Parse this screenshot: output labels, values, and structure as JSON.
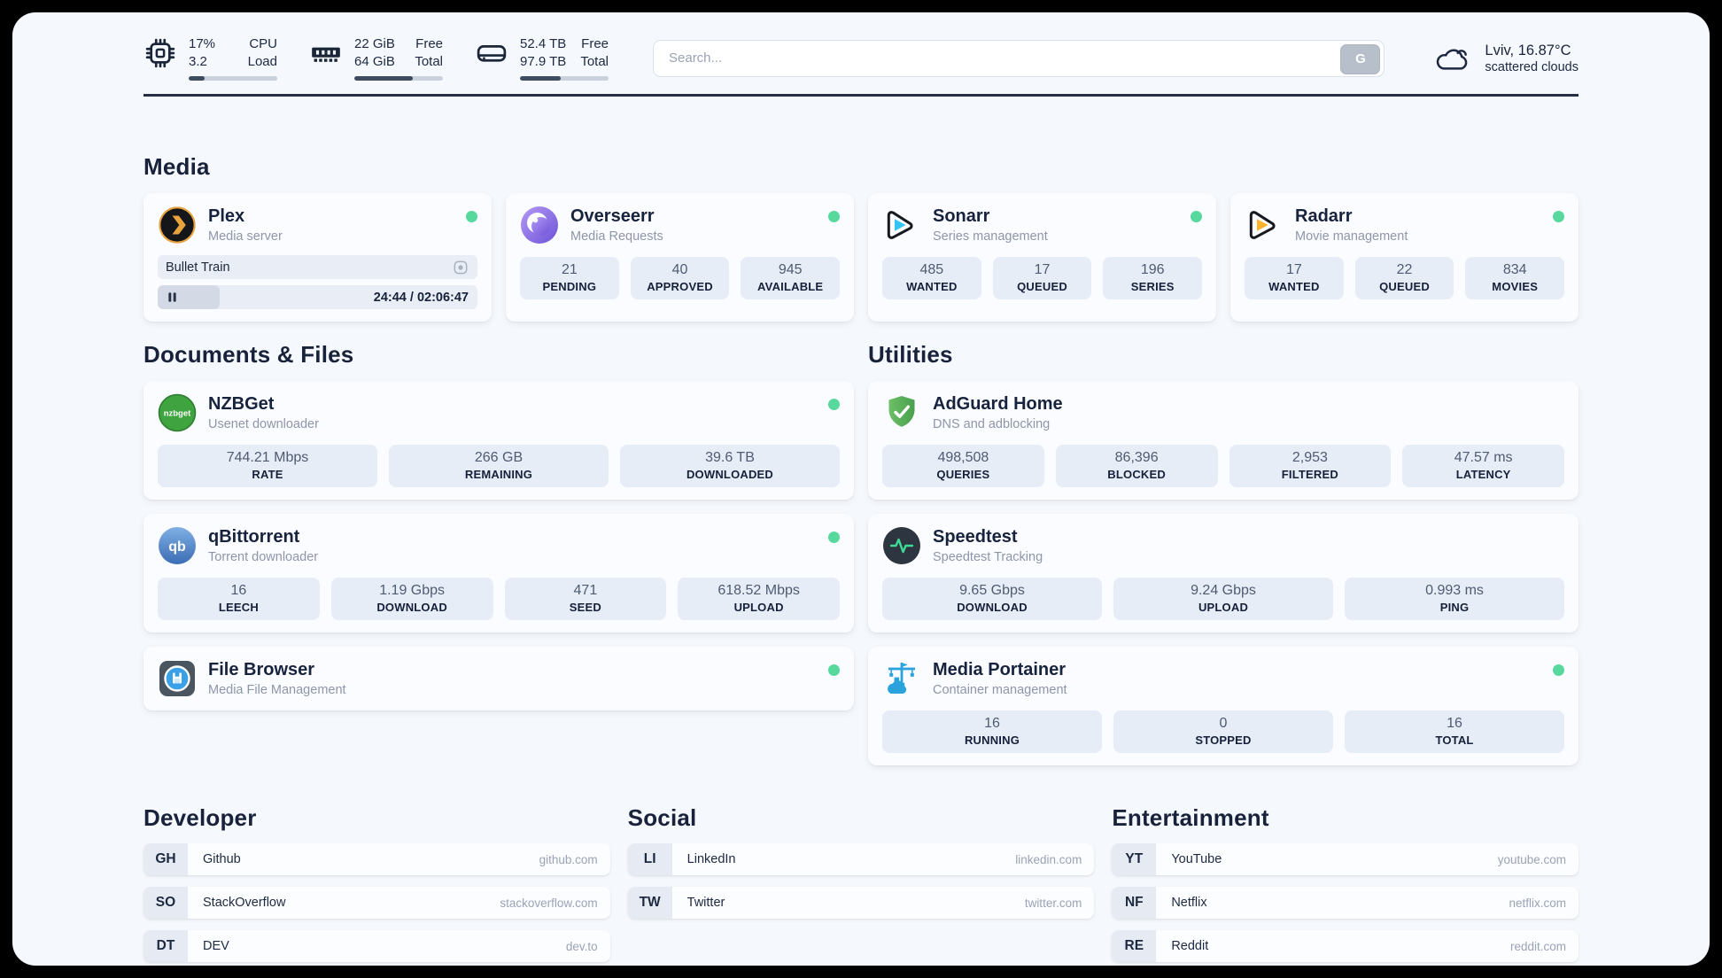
{
  "colors": {
    "status_green": "#57d89c",
    "accent_navy": "#252e42",
    "page_bg": "#f5f8fc",
    "frame": "#000000"
  },
  "topbar": {
    "resources": [
      {
        "icon": "cpu-icon",
        "values": [
          "17%",
          "3.2"
        ],
        "labels": [
          "CPU",
          "Load"
        ],
        "progress_pct": 18
      },
      {
        "icon": "memory-icon",
        "values": [
          "22 GiB",
          "64 GiB"
        ],
        "labels": [
          "Free",
          "Total"
        ],
        "progress_pct": 66
      },
      {
        "icon": "disk-icon",
        "values": [
          "52.4 TB",
          "97.9 TB"
        ],
        "labels": [
          "Free",
          "Total"
        ],
        "progress_pct": 46
      }
    ],
    "search": {
      "placeholder": "Search...",
      "provider_button": "G"
    },
    "weather": {
      "location_temp": "Lviv, 16.87°C",
      "condition": "scattered clouds",
      "icon": "cloud-icon"
    }
  },
  "sections": {
    "media": {
      "heading": "Media",
      "plex": {
        "icon": "plex-icon",
        "title": "Plex",
        "subtitle": "Media server",
        "status": "online",
        "now_playing": "Bullet Train",
        "time": "24:44 / 02:06:47",
        "progress_pct": 19.5
      },
      "cards": [
        {
          "icon": "overseerr-icon",
          "title": "Overseerr",
          "subtitle": "Media Requests",
          "status": "online",
          "stats": [
            {
              "value": "21",
              "label": "PENDING"
            },
            {
              "value": "40",
              "label": "APPROVED"
            },
            {
              "value": "945",
              "label": "AVAILABLE"
            }
          ]
        },
        {
          "icon": "sonarr-icon",
          "title": "Sonarr",
          "subtitle": "Series management",
          "status": "online",
          "stats": [
            {
              "value": "485",
              "label": "WANTED"
            },
            {
              "value": "17",
              "label": "QUEUED"
            },
            {
              "value": "196",
              "label": "SERIES"
            }
          ]
        },
        {
          "icon": "radarr-icon",
          "title": "Radarr",
          "subtitle": "Movie management",
          "status": "online",
          "stats": [
            {
              "value": "17",
              "label": "WANTED"
            },
            {
              "value": "22",
              "label": "QUEUED"
            },
            {
              "value": "834",
              "label": "MOVIES"
            }
          ]
        }
      ]
    },
    "documents": {
      "heading": "Documents & Files",
      "cards": [
        {
          "icon": "nzbget-icon",
          "title": "NZBGet",
          "subtitle": "Usenet downloader",
          "status": "online",
          "stats": [
            {
              "value": "744.21 Mbps",
              "label": "RATE"
            },
            {
              "value": "266 GB",
              "label": "REMAINING"
            },
            {
              "value": "39.6 TB",
              "label": "DOWNLOADED"
            }
          ]
        },
        {
          "icon": "qbittorrent-icon",
          "title": "qBittorrent",
          "subtitle": "Torrent downloader",
          "status": "online",
          "stats": [
            {
              "value": "16",
              "label": "LEECH"
            },
            {
              "value": "1.19 Gbps",
              "label": "DOWNLOAD"
            },
            {
              "value": "471",
              "label": "SEED"
            },
            {
              "value": "618.52 Mbps",
              "label": "UPLOAD"
            }
          ]
        },
        {
          "icon": "filebrowser-icon",
          "title": "File Browser",
          "subtitle": "Media File Management",
          "status": "online",
          "stats": []
        }
      ]
    },
    "utilities": {
      "heading": "Utilities",
      "cards": [
        {
          "icon": "adguard-icon",
          "title": "AdGuard Home",
          "subtitle": "DNS and adblocking",
          "stats": [
            {
              "value": "498,508",
              "label": "QUERIES"
            },
            {
              "value": "86,396",
              "label": "BLOCKED"
            },
            {
              "value": "2,953",
              "label": "FILTERED"
            },
            {
              "value": "47.57 ms",
              "label": "LATENCY"
            }
          ]
        },
        {
          "icon": "speedtest-icon",
          "title": "Speedtest",
          "subtitle": "Speedtest Tracking",
          "stats": [
            {
              "value": "9.65 Gbps",
              "label": "DOWNLOAD"
            },
            {
              "value": "9.24 Gbps",
              "label": "UPLOAD"
            },
            {
              "value": "0.993 ms",
              "label": "PING"
            }
          ]
        },
        {
          "icon": "portainer-icon",
          "title": "Media Portainer",
          "subtitle": "Container management",
          "status": "online",
          "stats": [
            {
              "value": "16",
              "label": "RUNNING"
            },
            {
              "value": "0",
              "label": "STOPPED"
            },
            {
              "value": "16",
              "label": "TOTAL"
            }
          ]
        }
      ]
    },
    "bookmarks": [
      {
        "heading": "Developer",
        "items": [
          {
            "abbr": "GH",
            "name": "Github",
            "url": "github.com"
          },
          {
            "abbr": "SO",
            "name": "StackOverflow",
            "url": "stackoverflow.com"
          },
          {
            "abbr": "DT",
            "name": "DEV",
            "url": "dev.to"
          }
        ]
      },
      {
        "heading": "Social",
        "items": [
          {
            "abbr": "LI",
            "name": "LinkedIn",
            "url": "linkedin.com"
          },
          {
            "abbr": "TW",
            "name": "Twitter",
            "url": "twitter.com"
          }
        ]
      },
      {
        "heading": "Entertainment",
        "items": [
          {
            "abbr": "YT",
            "name": "YouTube",
            "url": "youtube.com"
          },
          {
            "abbr": "NF",
            "name": "Netflix",
            "url": "netflix.com"
          },
          {
            "abbr": "RE",
            "name": "Reddit",
            "url": "reddit.com"
          }
        ]
      }
    ]
  }
}
